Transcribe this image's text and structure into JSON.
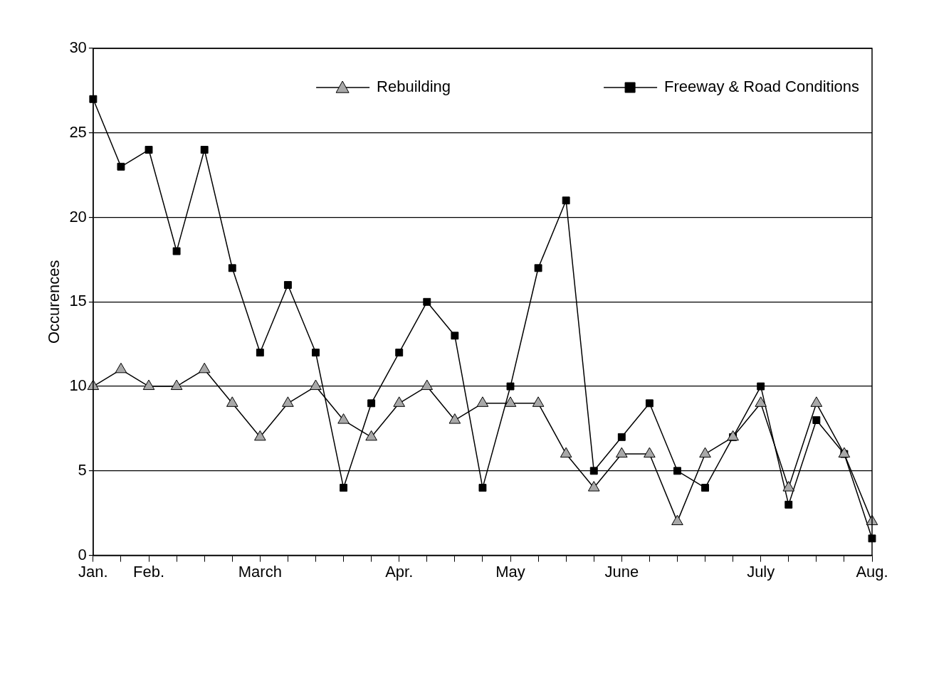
{
  "chart_data": {
    "type": "line",
    "ylabel": "Occurences",
    "categories": [
      "Jan.",
      null,
      "Feb.",
      null,
      null,
      null,
      "March",
      null,
      null,
      null,
      null,
      "Apr.",
      null,
      null,
      null,
      "May",
      null,
      null,
      null,
      "June",
      null,
      null,
      null,
      null,
      "July",
      null,
      null,
      null,
      "Aug."
    ],
    "series": [
      {
        "name": "Rebuilding",
        "color": "#000000",
        "marker": "triangle",
        "values": [
          10,
          11,
          10,
          10,
          11,
          9,
          7,
          9,
          10,
          8,
          7,
          9,
          10,
          8,
          9,
          9,
          9,
          6,
          4,
          6,
          6,
          2,
          6,
          7,
          9,
          4,
          9,
          6,
          2
        ]
      },
      {
        "name": "Freeway & Road Conditions",
        "color": "#000000",
        "marker": "square",
        "values": [
          27,
          23,
          24,
          18,
          24,
          17,
          12,
          16,
          12,
          4,
          9,
          12,
          15,
          13,
          4,
          10,
          17,
          21,
          5,
          7,
          9,
          5,
          4,
          7,
          10,
          3,
          8,
          6,
          1
        ]
      }
    ],
    "ylim": [
      0,
      30
    ],
    "yticks": [
      0,
      5,
      10,
      15,
      20,
      25,
      30
    ],
    "grid": "y",
    "legend": "top right"
  }
}
